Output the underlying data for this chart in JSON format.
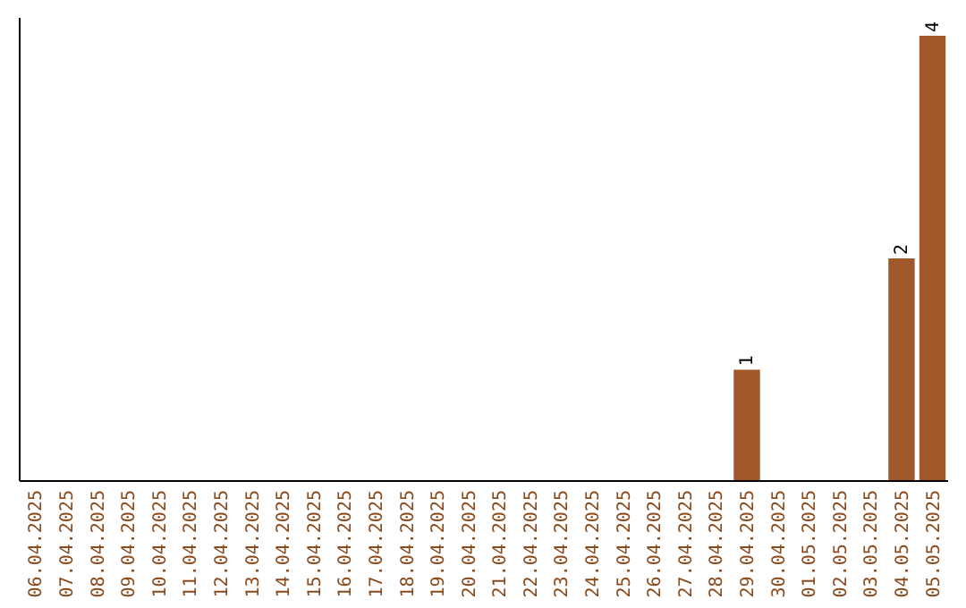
{
  "chart_data": {
    "type": "bar",
    "categories": [
      "06.04.2025",
      "07.04.2025",
      "08.04.2025",
      "09.04.2025",
      "10.04.2025",
      "11.04.2025",
      "12.04.2025",
      "13.04.2025",
      "14.04.2025",
      "15.04.2025",
      "16.04.2025",
      "17.04.2025",
      "18.04.2025",
      "19.04.2025",
      "20.04.2025",
      "21.04.2025",
      "22.04.2025",
      "23.04.2025",
      "24.04.2025",
      "25.04.2025",
      "26.04.2025",
      "27.04.2025",
      "28.04.2025",
      "29.04.2025",
      "30.04.2025",
      "01.05.2025",
      "02.05.2025",
      "03.05.2025",
      "04.05.2025",
      "05.05.2025"
    ],
    "values": [
      null,
      null,
      null,
      null,
      null,
      null,
      null,
      null,
      null,
      null,
      null,
      null,
      null,
      null,
      null,
      null,
      null,
      null,
      null,
      null,
      null,
      null,
      null,
      1,
      null,
      null,
      null,
      null,
      2,
      4
    ],
    "value_labels": [
      null,
      null,
      null,
      null,
      null,
      null,
      null,
      null,
      null,
      null,
      null,
      null,
      null,
      null,
      null,
      null,
      null,
      null,
      null,
      null,
      null,
      null,
      null,
      "1",
      null,
      null,
      null,
      null,
      "2",
      "4"
    ],
    "color": "#a0572a"
  }
}
